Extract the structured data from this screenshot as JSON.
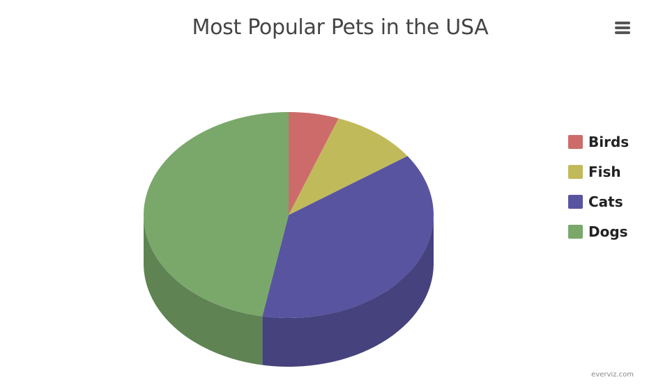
{
  "title": "Most Popular Pets in the USA",
  "credits": "everviz.com",
  "menu_icon": "hamburger-menu-icon",
  "chart_data": {
    "type": "pie",
    "title": "Most Popular Pets in the USA",
    "three_d": true,
    "legend_position": "right",
    "categories": [
      "Birds",
      "Fish",
      "Cats",
      "Dogs"
    ],
    "values": [
      5.6,
      9.7,
      37.6,
      47.1
    ],
    "colors": [
      "#cd6b6b",
      "#c1ba5b",
      "#5854a0",
      "#7aa86b"
    ]
  }
}
